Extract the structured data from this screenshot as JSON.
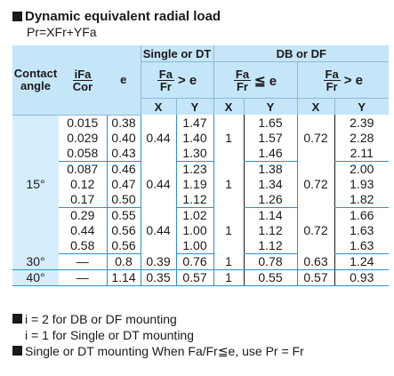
{
  "title": "Dynamic equivalent radial load",
  "formula": "Pr=XFr+YFa",
  "header": {
    "contact_angle": [
      "Contact",
      "angle"
    ],
    "ifa_cor": [
      "iFa",
      "Cor"
    ],
    "e": "e",
    "single_dt": "Single or DT",
    "db_df": "DB or DF",
    "cond_fa": "Fa",
    "cond_fr": "Fr",
    "gt_e": "> e",
    "le_e": "≦ e",
    "x": "X",
    "y": "Y"
  },
  "rows": [
    {
      "ifa": "0.015",
      "e": "0.38",
      "x1": "",
      "y1": "1.47",
      "x2": "",
      "y2": "1.65",
      "x3": "",
      "y3": "2.39"
    },
    {
      "ifa": "0.029",
      "e": "0.40",
      "x1": "0.44",
      "y1": "1.40",
      "x2": "1",
      "y2": "1.57",
      "x3": "0.72",
      "y3": "2.28"
    },
    {
      "ifa": "0.058",
      "e": "0.43",
      "x1": "",
      "y1": "1.30",
      "x2": "",
      "y2": "1.46",
      "x3": "",
      "y3": "2.11"
    },
    {
      "ifa": "0.087",
      "e": "0.46",
      "x1": "",
      "y1": "1.23",
      "x2": "",
      "y2": "1.38",
      "x3": "",
      "y3": "2.00"
    },
    {
      "ifa": "0.12",
      "e": "0.47",
      "x1": "0.44",
      "y1": "1.19",
      "x2": "1",
      "y2": "1.34",
      "x3": "0.72",
      "y3": "1.93"
    },
    {
      "ifa": "0.17",
      "e": "0.50",
      "x1": "",
      "y1": "1.12",
      "x2": "",
      "y2": "1.26",
      "x3": "",
      "y3": "1.82"
    },
    {
      "ifa": "0.29",
      "e": "0.55",
      "x1": "",
      "y1": "1.02",
      "x2": "",
      "y2": "1.14",
      "x3": "",
      "y3": "1.66"
    },
    {
      "ifa": "0.44",
      "e": "0.56",
      "x1": "0.44",
      "y1": "1.00",
      "x2": "1",
      "y2": "1.12",
      "x3": "0.72",
      "y3": "1.63"
    },
    {
      "ifa": "0.58",
      "e": "0.56",
      "x1": "",
      "y1": "1.00",
      "x2": "",
      "y2": "1.12",
      "x3": "",
      "y3": "1.63"
    }
  ],
  "angle_15": "15°",
  "row_30": {
    "angle": "30°",
    "ifa": "—",
    "e": "0.8",
    "x1": "0.39",
    "y1": "0.76",
    "x2": "1",
    "y2": "0.78",
    "x3": "0.63",
    "y3": "1.24"
  },
  "row_40": {
    "angle": "40°",
    "ifa": "—",
    "e": "1.14",
    "x1": "0.35",
    "y1": "0.57",
    "x2": "1",
    "y2": "0.55",
    "x3": "0.57",
    "y3": "0.93"
  },
  "notes": {
    "n1": "i = 2 for DB or DF mounting",
    "n2": "i = 1 for Single or DT mounting",
    "n3": "Single or DT mounting When Fa/Fr≦e, use Pr = Fr"
  }
}
